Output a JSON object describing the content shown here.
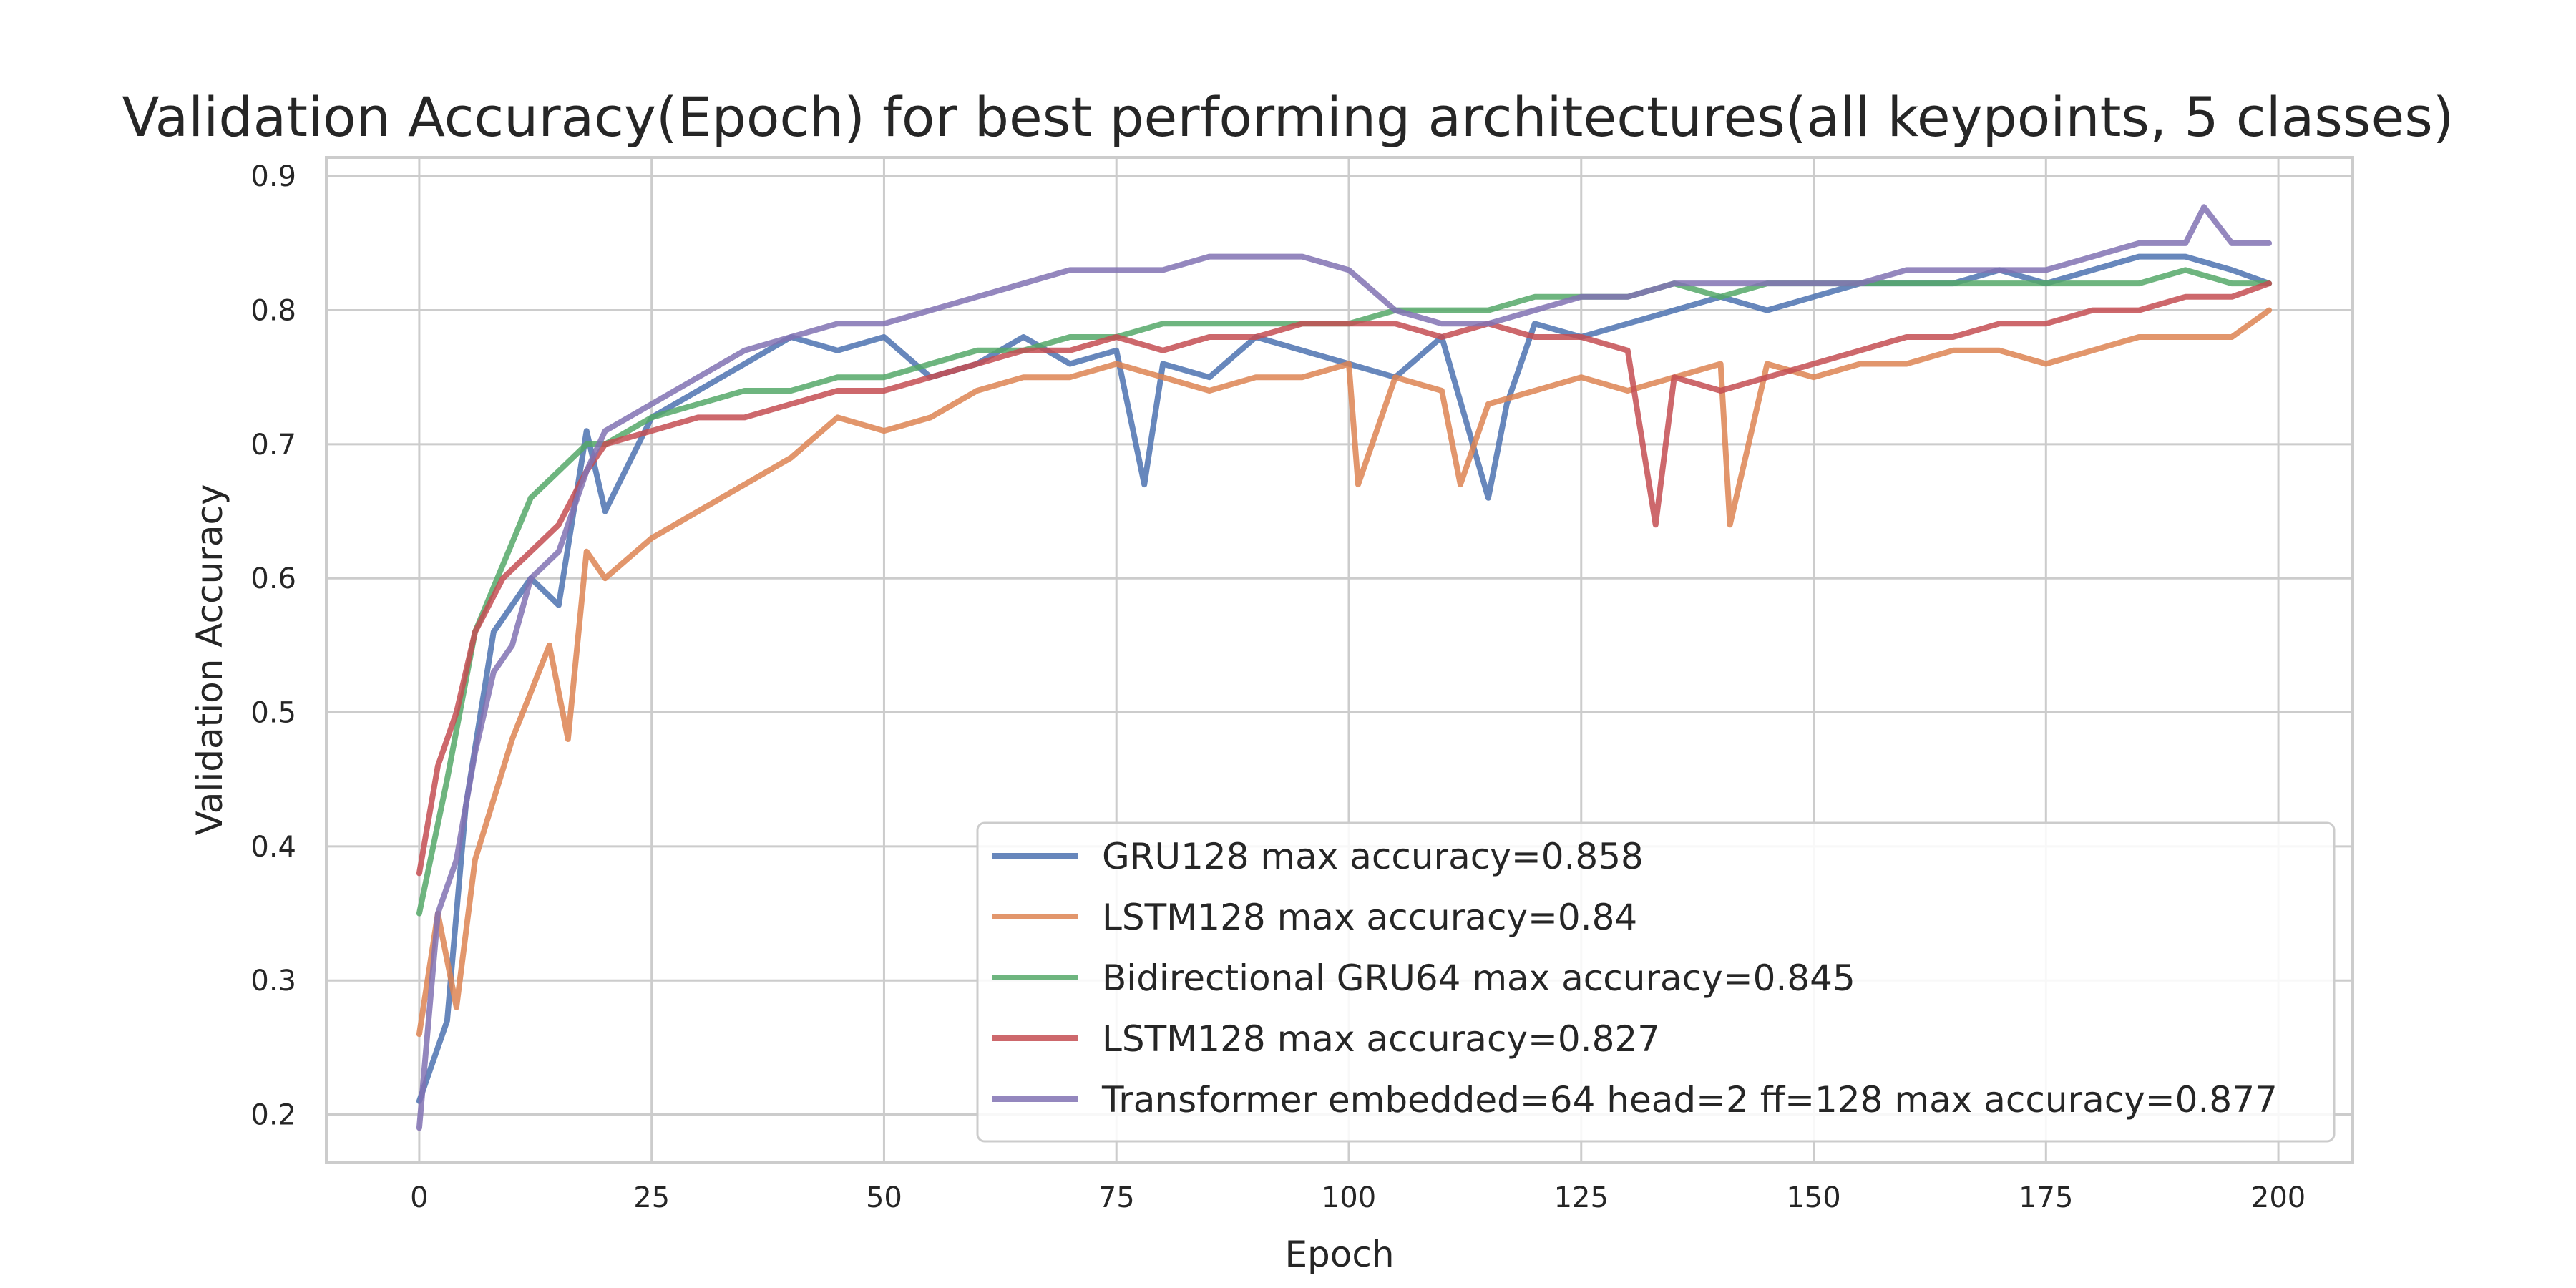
{
  "chart_data": {
    "type": "line",
    "title": "Validation Accuracy(Epoch) for best performing architectures(all keypoints, 5 classes)",
    "xlabel": "Epoch",
    "ylabel": "Validation Accuracy",
    "xlim": [
      -10,
      208
    ],
    "ylim": [
      0.164,
      0.914
    ],
    "xticks": [
      0,
      25,
      50,
      75,
      100,
      125,
      150,
      175,
      200
    ],
    "yticks": [
      0.2,
      0.3,
      0.4,
      0.5,
      0.6,
      0.7,
      0.8,
      0.9
    ],
    "xtick_labels": [
      "0",
      "25",
      "50",
      "75",
      "100",
      "125",
      "150",
      "175",
      "200"
    ],
    "ytick_labels": [
      "0.2",
      "0.3",
      "0.4",
      "0.5",
      "0.6",
      "0.7",
      "0.8",
      "0.9"
    ],
    "grid": true,
    "legend_position": "lower-right",
    "series": [
      {
        "name": "GRU128 max accuracy=0.858",
        "color": "#4c72b0",
        "points": [
          [
            0,
            0.21
          ],
          [
            3,
            0.27
          ],
          [
            5,
            0.43
          ],
          [
            8,
            0.56
          ],
          [
            12,
            0.6
          ],
          [
            15,
            0.58
          ],
          [
            18,
            0.71
          ],
          [
            20,
            0.65
          ],
          [
            25,
            0.72
          ],
          [
            30,
            0.74
          ],
          [
            35,
            0.76
          ],
          [
            40,
            0.78
          ],
          [
            45,
            0.77
          ],
          [
            50,
            0.78
          ],
          [
            55,
            0.75
          ],
          [
            60,
            0.76
          ],
          [
            65,
            0.78
          ],
          [
            70,
            0.76
          ],
          [
            75,
            0.77
          ],
          [
            78,
            0.67
          ],
          [
            80,
            0.76
          ],
          [
            85,
            0.75
          ],
          [
            90,
            0.78
          ],
          [
            95,
            0.77
          ],
          [
            100,
            0.76
          ],
          [
            105,
            0.75
          ],
          [
            110,
            0.78
          ],
          [
            115,
            0.66
          ],
          [
            117,
            0.73
          ],
          [
            120,
            0.79
          ],
          [
            125,
            0.78
          ],
          [
            130,
            0.79
          ],
          [
            135,
            0.8
          ],
          [
            140,
            0.81
          ],
          [
            145,
            0.8
          ],
          [
            150,
            0.81
          ],
          [
            155,
            0.82
          ],
          [
            160,
            0.82
          ],
          [
            165,
            0.82
          ],
          [
            170,
            0.83
          ],
          [
            175,
            0.82
          ],
          [
            180,
            0.83
          ],
          [
            185,
            0.84
          ],
          [
            190,
            0.84
          ],
          [
            195,
            0.83
          ],
          [
            199,
            0.82
          ]
        ]
      },
      {
        "name": "LSTM128 max accuracy=0.84",
        "color": "#dd8452",
        "points": [
          [
            0,
            0.26
          ],
          [
            2,
            0.35
          ],
          [
            4,
            0.28
          ],
          [
            6,
            0.39
          ],
          [
            10,
            0.48
          ],
          [
            14,
            0.55
          ],
          [
            16,
            0.48
          ],
          [
            18,
            0.62
          ],
          [
            20,
            0.6
          ],
          [
            25,
            0.63
          ],
          [
            30,
            0.65
          ],
          [
            35,
            0.67
          ],
          [
            40,
            0.69
          ],
          [
            45,
            0.72
          ],
          [
            50,
            0.71
          ],
          [
            55,
            0.72
          ],
          [
            60,
            0.74
          ],
          [
            65,
            0.75
          ],
          [
            70,
            0.75
          ],
          [
            75,
            0.76
          ],
          [
            80,
            0.75
          ],
          [
            85,
            0.74
          ],
          [
            90,
            0.75
          ],
          [
            95,
            0.75
          ],
          [
            100,
            0.76
          ],
          [
            101,
            0.67
          ],
          [
            105,
            0.75
          ],
          [
            110,
            0.74
          ],
          [
            112,
            0.67
          ],
          [
            115,
            0.73
          ],
          [
            120,
            0.74
          ],
          [
            125,
            0.75
          ],
          [
            130,
            0.74
          ],
          [
            135,
            0.75
          ],
          [
            140,
            0.76
          ],
          [
            141,
            0.64
          ],
          [
            145,
            0.76
          ],
          [
            150,
            0.75
          ],
          [
            155,
            0.76
          ],
          [
            160,
            0.76
          ],
          [
            165,
            0.77
          ],
          [
            170,
            0.77
          ],
          [
            175,
            0.76
          ],
          [
            180,
            0.77
          ],
          [
            185,
            0.78
          ],
          [
            190,
            0.78
          ],
          [
            195,
            0.78
          ],
          [
            199,
            0.8
          ]
        ]
      },
      {
        "name": "Bidirectional GRU64 max accuracy=0.845",
        "color": "#55a868",
        "points": [
          [
            0,
            0.35
          ],
          [
            3,
            0.45
          ],
          [
            6,
            0.56
          ],
          [
            9,
            0.61
          ],
          [
            12,
            0.66
          ],
          [
            15,
            0.68
          ],
          [
            18,
            0.7
          ],
          [
            20,
            0.7
          ],
          [
            25,
            0.72
          ],
          [
            30,
            0.73
          ],
          [
            35,
            0.74
          ],
          [
            40,
            0.74
          ],
          [
            45,
            0.75
          ],
          [
            50,
            0.75
          ],
          [
            55,
            0.76
          ],
          [
            60,
            0.77
          ],
          [
            65,
            0.77
          ],
          [
            70,
            0.78
          ],
          [
            75,
            0.78
          ],
          [
            80,
            0.79
          ],
          [
            85,
            0.79
          ],
          [
            90,
            0.79
          ],
          [
            95,
            0.79
          ],
          [
            100,
            0.79
          ],
          [
            105,
            0.8
          ],
          [
            110,
            0.8
          ],
          [
            115,
            0.8
          ],
          [
            120,
            0.81
          ],
          [
            125,
            0.81
          ],
          [
            130,
            0.81
          ],
          [
            135,
            0.82
          ],
          [
            140,
            0.81
          ],
          [
            145,
            0.82
          ],
          [
            150,
            0.82
          ],
          [
            155,
            0.82
          ],
          [
            160,
            0.82
          ],
          [
            165,
            0.82
          ],
          [
            170,
            0.82
          ],
          [
            175,
            0.82
          ],
          [
            180,
            0.82
          ],
          [
            185,
            0.82
          ],
          [
            190,
            0.83
          ],
          [
            195,
            0.82
          ],
          [
            199,
            0.82
          ]
        ]
      },
      {
        "name": "LSTM128 max accuracy=0.827",
        "color": "#c44e52",
        "points": [
          [
            0,
            0.38
          ],
          [
            2,
            0.46
          ],
          [
            4,
            0.5
          ],
          [
            6,
            0.56
          ],
          [
            9,
            0.6
          ],
          [
            12,
            0.62
          ],
          [
            15,
            0.64
          ],
          [
            18,
            0.68
          ],
          [
            20,
            0.7
          ],
          [
            25,
            0.71
          ],
          [
            30,
            0.72
          ],
          [
            35,
            0.72
          ],
          [
            40,
            0.73
          ],
          [
            45,
            0.74
          ],
          [
            50,
            0.74
          ],
          [
            55,
            0.75
          ],
          [
            60,
            0.76
          ],
          [
            65,
            0.77
          ],
          [
            70,
            0.77
          ],
          [
            75,
            0.78
          ],
          [
            80,
            0.77
          ],
          [
            85,
            0.78
          ],
          [
            90,
            0.78
          ],
          [
            95,
            0.79
          ],
          [
            100,
            0.79
          ],
          [
            105,
            0.79
          ],
          [
            110,
            0.78
          ],
          [
            115,
            0.79
          ],
          [
            120,
            0.78
          ],
          [
            125,
            0.78
          ],
          [
            130,
            0.77
          ],
          [
            133,
            0.64
          ],
          [
            135,
            0.75
          ],
          [
            140,
            0.74
          ],
          [
            145,
            0.75
          ],
          [
            150,
            0.76
          ],
          [
            155,
            0.77
          ],
          [
            160,
            0.78
          ],
          [
            165,
            0.78
          ],
          [
            170,
            0.79
          ],
          [
            175,
            0.79
          ],
          [
            180,
            0.8
          ],
          [
            185,
            0.8
          ],
          [
            190,
            0.81
          ],
          [
            195,
            0.81
          ],
          [
            199,
            0.82
          ]
        ]
      },
      {
        "name": "Transformer embedded=64 head=2 ff=128 max accuracy=0.877",
        "color": "#8172b3",
        "points": [
          [
            0,
            0.19
          ],
          [
            2,
            0.35
          ],
          [
            4,
            0.39
          ],
          [
            6,
            0.47
          ],
          [
            8,
            0.53
          ],
          [
            10,
            0.55
          ],
          [
            12,
            0.6
          ],
          [
            15,
            0.62
          ],
          [
            18,
            0.68
          ],
          [
            20,
            0.71
          ],
          [
            25,
            0.73
          ],
          [
            30,
            0.75
          ],
          [
            35,
            0.77
          ],
          [
            40,
            0.78
          ],
          [
            45,
            0.79
          ],
          [
            50,
            0.79
          ],
          [
            55,
            0.8
          ],
          [
            60,
            0.81
          ],
          [
            65,
            0.82
          ],
          [
            70,
            0.83
          ],
          [
            75,
            0.83
          ],
          [
            80,
            0.83
          ],
          [
            85,
            0.84
          ],
          [
            90,
            0.84
          ],
          [
            95,
            0.84
          ],
          [
            100,
            0.83
          ],
          [
            105,
            0.8
          ],
          [
            110,
            0.79
          ],
          [
            115,
            0.79
          ],
          [
            120,
            0.8
          ],
          [
            125,
            0.81
          ],
          [
            130,
            0.81
          ],
          [
            135,
            0.82
          ],
          [
            140,
            0.82
          ],
          [
            145,
            0.82
          ],
          [
            150,
            0.82
          ],
          [
            155,
            0.82
          ],
          [
            160,
            0.83
          ],
          [
            165,
            0.83
          ],
          [
            170,
            0.83
          ],
          [
            175,
            0.83
          ],
          [
            180,
            0.84
          ],
          [
            185,
            0.85
          ],
          [
            190,
            0.85
          ],
          [
            192,
            0.877
          ],
          [
            195,
            0.85
          ],
          [
            199,
            0.85
          ]
        ]
      }
    ]
  }
}
